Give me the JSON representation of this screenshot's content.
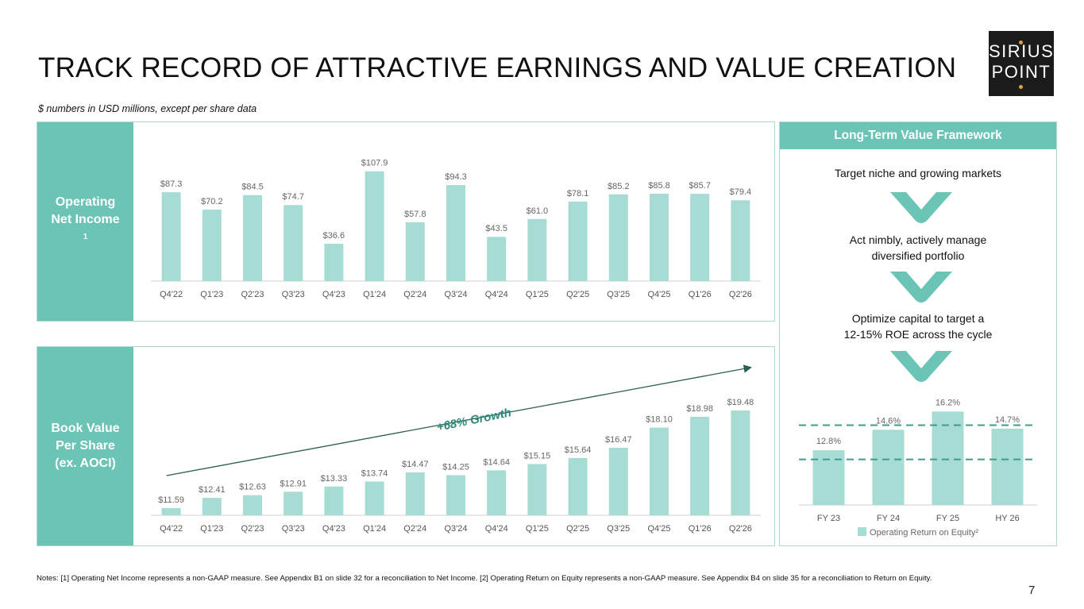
{
  "header": {
    "title": "TRACK RECORD OF ATTRACTIVE EARNINGS AND VALUE CREATION",
    "subtitle": "$ numbers in USD millions, except per share data"
  },
  "logo": {
    "line1": "SIRIUS",
    "line2": "POINT"
  },
  "panels": {
    "operating_net_income": {
      "label_line1": "Operating",
      "label_line2": "Net Income",
      "footnote": "1"
    },
    "book_value": {
      "label_line1": "Book Value",
      "label_line2": "Per Share",
      "label_line3": "(ex. AOCI)",
      "growth_label": "+68% Growth"
    }
  },
  "framework": {
    "title": "Long-Term Value Framework",
    "items": [
      {
        "line1": "Target niche and growing markets",
        "line2": ""
      },
      {
        "line1": "Act nimbly, actively manage",
        "line2": "diversified portfolio"
      },
      {
        "line1": "Optimize capital to target a",
        "line2": "12-15% ROE across the cycle"
      }
    ],
    "legend": "Operating Return on Equity²"
  },
  "chart_data": [
    {
      "type": "bar",
      "title": "Operating Net Income",
      "categories": [
        "Q4'22",
        "Q1'23",
        "Q2'23",
        "Q3'23",
        "Q4'23",
        "Q1'24",
        "Q2'24",
        "Q3'24",
        "Q4'24",
        "Q1'25",
        "Q2'25",
        "Q3'25",
        "Q4'25",
        "Q1'26",
        "Q2'26"
      ],
      "values": [
        87.3,
        70.2,
        84.5,
        74.7,
        36.6,
        107.9,
        57.8,
        94.3,
        43.5,
        61.0,
        78.1,
        85.2,
        85.8,
        85.7,
        79.4
      ],
      "value_labels": [
        "$87.3",
        "$70.2",
        "$84.5",
        "$74.7",
        "$36.6",
        "$107.9",
        "$57.8",
        "$94.3",
        "$43.5",
        "$61.0",
        "$78.1",
        "$85.2",
        "$85.8",
        "$85.7",
        "$79.4"
      ],
      "ylim": [
        0,
        110
      ],
      "grid": false
    },
    {
      "type": "bar",
      "title": "Book Value Per Share (ex. AOCI)",
      "categories": [
        "Q4'22",
        "Q1'23",
        "Q2'23",
        "Q3'23",
        "Q4'23",
        "Q1'24",
        "Q2'24",
        "Q3'24",
        "Q4'24",
        "Q1'25",
        "Q2'25",
        "Q3'25",
        "Q4'25",
        "Q1'26",
        "Q2'26"
      ],
      "values": [
        11.59,
        12.41,
        12.63,
        12.91,
        13.33,
        13.74,
        14.47,
        14.25,
        14.64,
        15.15,
        15.64,
        16.47,
        18.1,
        18.98,
        19.48
      ],
      "value_labels": [
        "$11.59",
        "$12.41",
        "$12.63",
        "$12.91",
        "$13.33",
        "$13.74",
        "$14.47",
        "$14.25",
        "$14.64",
        "$15.15",
        "$15.64",
        "$16.47",
        "$18.10",
        "$18.98",
        "$19.48"
      ],
      "ylim": [
        11,
        20
      ],
      "annotation": "+68% Growth",
      "grid": false
    },
    {
      "type": "bar",
      "title": "Operating Return on Equity",
      "categories": [
        "FY 23",
        "FY 24",
        "FY 25",
        "HY 26"
      ],
      "values": [
        12.8,
        14.6,
        16.2,
        14.7
      ],
      "value_labels": [
        "12.8%",
        "14.6%",
        "16.2%",
        "14.7%"
      ],
      "reference_lines": [
        12,
        15
      ],
      "ylim": [
        8,
        16.5
      ],
      "legend": "bottom",
      "grid": false
    }
  ],
  "footer": {
    "notes": "Notes: [1] Operating Net Income represents a non-GAAP measure. See Appendix B1 on slide 32 for a reconciliation to Net Income. [2] Operating Return on Equity represents a non-GAAP measure. See Appendix B4 on slide 35 for a reconciliation to Return on Equity.",
    "page_number": "7"
  }
}
